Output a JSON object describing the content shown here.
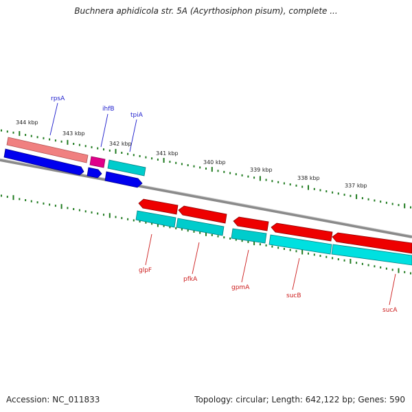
{
  "title": "Buchnera aphidicola str. 5A (Acyrthosiphon pisum), complete ...",
  "footer": {
    "accession": "Accession: NC_011833",
    "summary": "Topology: circular; Length: 642,122 bp; Genes: 590"
  },
  "ruler": [
    "344 kbp",
    "343 kbp",
    "342 kbp",
    "341 kbp",
    "340 kbp",
    "339 kbp",
    "338 kbp",
    "337 kbp"
  ],
  "genes_top": [
    {
      "label": "rpsA",
      "color": "#1a1acc"
    },
    {
      "label": "ihfB",
      "color": "#1a1acc"
    },
    {
      "label": "tpiA",
      "color": "#1a1acc"
    }
  ],
  "genes_bottom": [
    {
      "label": "glpF",
      "color": "#cc1a1a"
    },
    {
      "label": "pfkA",
      "color": "#cc1a1a"
    },
    {
      "label": "gpmA",
      "color": "#cc1a1a"
    },
    {
      "label": "sucB",
      "color": "#cc1a1a"
    },
    {
      "label": "sucA",
      "color": "#cc1a1a"
    }
  ],
  "colors": {
    "backbone": "#808080",
    "tick": "#1e7a1e",
    "forward_cds": "#0000ee",
    "reverse_cds": "#ee0000",
    "forward_gene": "#f08080",
    "reverse_gene": "#00e0e0",
    "trna": "#e0008a"
  }
}
